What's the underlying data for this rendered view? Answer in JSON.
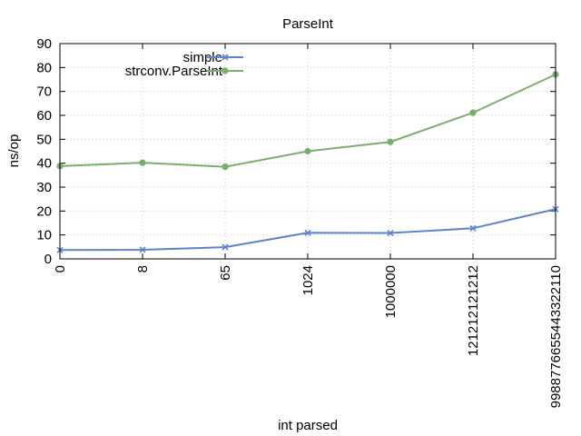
{
  "chart_data": {
    "type": "line",
    "title": "ParseInt",
    "xlabel": "int parsed",
    "ylabel": "ns/op",
    "categories": [
      "0",
      "8",
      "65",
      "1024",
      "1000000",
      "121212121212",
      "9988776655443322110"
    ],
    "ylim": [
      0,
      90
    ],
    "yticks": [
      0,
      10,
      20,
      30,
      40,
      50,
      60,
      70,
      80,
      90
    ],
    "grid": true,
    "legend_position": "top-left",
    "series": [
      {
        "name": "simple",
        "values": [
          3.7,
          3.8,
          4.9,
          10.9,
          10.8,
          12.8,
          20.8
        ],
        "color": "#5b84cc",
        "marker": "x"
      },
      {
        "name": "strconv.ParseInt",
        "values": [
          38.8,
          40.2,
          38.5,
          45.0,
          48.9,
          61.1,
          77.1
        ],
        "color": "#7aaf69",
        "marker": "circle"
      }
    ]
  }
}
